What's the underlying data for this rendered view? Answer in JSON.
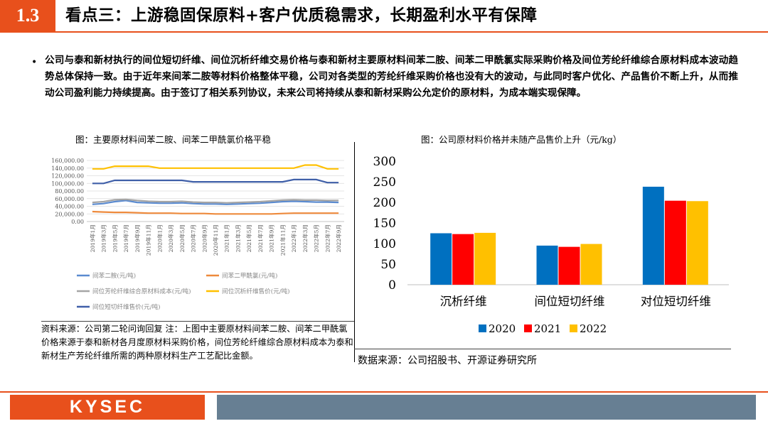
{
  "header": {
    "section_number": "1.3",
    "title": "看点三：上游稳固保原料+客户优质稳需求，长期盈利水平有保障"
  },
  "bullet": {
    "marker": "•",
    "text": "公司与泰和新材执行的间位短切纤维、间位沉析纤维交易价格与泰和新材主要原材料间苯二胺、间苯二甲酰氯实际采购价格及间位芳纶纤维综合原材料成本波动趋势总体保持一致。由于近年来间苯二胺等材料价格整体平稳，公司对各类型的芳纶纤维采购价格也没有大的波动，与此同时客户优化、产品售价不断上升，从而推动公司盈利能力持续提高。由于签订了相关系列协议，未来公司将持续从泰和新材采购公允定价的原材料，为成本端实现保障。"
  },
  "left_chart": {
    "caption": "图：主要原材料间苯二胺、间苯二甲酰氯价格平稳",
    "note": "资料来源：公司第二轮问询回复        注：上图中主要原材料间苯二胺、间苯二甲酰氯价格来源于泰和新材各月度原材料采购价格，间位芳纶纤维综合原材料成本为泰和新材生产芳纶纤维所需的两种原材料生产工艺配比金额。"
  },
  "right_chart": {
    "caption": "图：公司原材料价格并未随产品售价上升（元/kg）",
    "source": "数据来源：公司招股书、开源证券研究所"
  },
  "footer": {
    "logo": "KYSEC"
  },
  "chart_data": [
    {
      "type": "line",
      "y_ticks": [
        "160,000.00",
        "140,000.00",
        "120,000.00",
        "100,000.00",
        "80,000.00",
        "60,000.00",
        "40,000.00",
        "20,000.00",
        "0.00"
      ],
      "ylim": [
        0,
        160000
      ],
      "grid": true,
      "x": [
        "2019年1月",
        "2019年3月",
        "2019年5月",
        "2019年7月",
        "2019年9月",
        "2019年11月",
        "2020年1月",
        "2020年3月",
        "2020年5月",
        "2020年7月",
        "2020年9月",
        "2020年11月",
        "2021年1月",
        "2021年3月",
        "2021年5月",
        "2021年7月",
        "2021年9月",
        "2021年11月",
        "2022年1月",
        "2022年3月",
        "2022年5月",
        "2022年7月",
        "2022年9月"
      ],
      "series": [
        {
          "name": "间苯二胺(元/吨)",
          "color": "#5b8bd0",
          "values": [
            45000,
            47000,
            52000,
            55000,
            50000,
            49000,
            48000,
            48000,
            49000,
            47000,
            46000,
            46000,
            45000,
            46000,
            47000,
            48000,
            50000,
            52000,
            53000,
            52000,
            51000,
            51000,
            50000
          ]
        },
        {
          "name": "间苯二甲酰氯(元/吨)",
          "color": "#ee8a3c",
          "values": [
            26000,
            25000,
            24000,
            24000,
            23000,
            22000,
            22000,
            22000,
            21000,
            21000,
            21000,
            20000,
            20000,
            20000,
            20000,
            20000,
            20000,
            21000,
            22000,
            22000,
            22000,
            22000,
            22000
          ]
        },
        {
          "name": "间位芳纶纤维综合原材料成本(元/吨)",
          "color": "#a5a5a5",
          "values": [
            50000,
            52000,
            57000,
            58000,
            55000,
            53000,
            52000,
            52000,
            53000,
            51000,
            50000,
            50000,
            49000,
            50000,
            51000,
            52000,
            54000,
            56000,
            57000,
            56000,
            56000,
            55000,
            55000
          ]
        },
        {
          "name": "间位沉析纤维售价(元/吨)",
          "color": "#ffc000",
          "values": [
            138000,
            138000,
            145000,
            145000,
            145000,
            145000,
            140000,
            140000,
            140000,
            140000,
            140000,
            140000,
            140000,
            140000,
            140000,
            140000,
            140000,
            140000,
            140000,
            148000,
            148000,
            138000,
            138000
          ]
        },
        {
          "name": "间位短切纤维售价(元/吨)",
          "color": "#3f5fa8",
          "values": [
            100000,
            100000,
            108000,
            108000,
            108000,
            108000,
            108000,
            108000,
            108000,
            104000,
            104000,
            104000,
            104000,
            104000,
            104000,
            104000,
            104000,
            104000,
            110000,
            110000,
            110000,
            102000,
            102000
          ]
        }
      ]
    },
    {
      "type": "bar",
      "categories": [
        "沉析纤维",
        "间位短切纤维",
        "对位短切纤维"
      ],
      "ylim": [
        0,
        300
      ],
      "y_ticks": [
        0,
        50,
        100,
        150,
        200,
        250,
        300
      ],
      "grid": false,
      "legend": "bottom",
      "series": [
        {
          "name": "2020",
          "color": "#0070c0",
          "values": [
            125,
            95,
            238
          ]
        },
        {
          "name": "2021",
          "color": "#ff0000",
          "values": [
            123,
            92,
            204
          ]
        },
        {
          "name": "2022",
          "color": "#ffc000",
          "values": [
            126,
            99,
            203
          ]
        }
      ]
    }
  ]
}
